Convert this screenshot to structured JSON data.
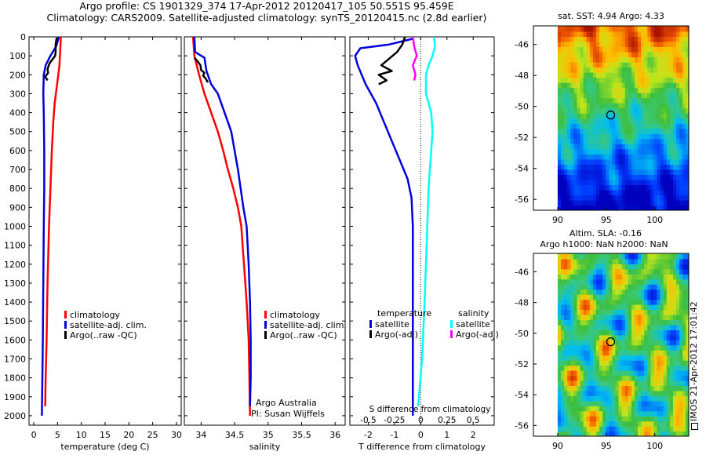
{
  "title": {
    "line1": "Argo profile: CS 1901329_374 17-Apr-2012 20120417_105 50.551S 95.459E",
    "line2": "Climatology: CARS2009. Satellite-adjusted climatology: synTS_20120415.nc (2.8d earlier)"
  },
  "footer": {
    "credit1": "Argo Australia",
    "credit2": "PI: Susan Wijffels",
    "timestamp": "IMOS 21-Apr-2012 17:01:42"
  },
  "colors": {
    "red": "#ff0000",
    "blue": "#0000dd",
    "black": "#000000",
    "cyan": "#00ffff",
    "magenta": "#ff00ff"
  },
  "chart_data": [
    {
      "id": "temperature",
      "type": "line",
      "xlabel": "temperature (deg C)",
      "ylabel": "",
      "xlim": [
        -1,
        31
      ],
      "ylim": [
        2050,
        0
      ],
      "xticks": [
        0,
        5,
        10,
        15,
        20,
        25,
        30
      ],
      "yticks": [
        0,
        100,
        200,
        300,
        400,
        500,
        600,
        700,
        800,
        900,
        1000,
        1100,
        1200,
        1300,
        1400,
        1500,
        1600,
        1700,
        1800,
        1900,
        2000
      ],
      "legend": [
        "climatology",
        "satellite-adj. clim.",
        "Argo(..raw -QC)"
      ],
      "series": [
        {
          "name": "climatology",
          "color": "red",
          "points": [
            [
              5.7,
              0
            ],
            [
              5.6,
              50
            ],
            [
              5.4,
              150
            ],
            [
              4.9,
              250
            ],
            [
              4.4,
              350
            ],
            [
              4.1,
              450
            ],
            [
              3.8,
              600
            ],
            [
              3.5,
              800
            ],
            [
              3.2,
              1000
            ],
            [
              2.9,
              1300
            ],
            [
              2.7,
              1600
            ],
            [
              2.5,
              1800
            ],
            [
              2.4,
              1950
            ]
          ]
        },
        {
          "name": "satellite-adj. clim.",
          "color": "blue",
          "points": [
            [
              5.3,
              0
            ],
            [
              4.7,
              50
            ],
            [
              3.5,
              100
            ],
            [
              2.5,
              150
            ],
            [
              2.1,
              200
            ],
            [
              2.0,
              300
            ],
            [
              2.1,
              400
            ],
            [
              2.2,
              600
            ],
            [
              2.2,
              800
            ],
            [
              2.1,
              1000
            ],
            [
              2.0,
              1300
            ],
            [
              1.9,
              1600
            ],
            [
              1.8,
              1800
            ],
            [
              1.7,
              2000
            ]
          ]
        },
        {
          "name": "Argo(..raw -QC)",
          "color": "black",
          "points": [
            [
              4.8,
              5
            ],
            [
              4.6,
              40
            ],
            [
              4.6,
              80
            ],
            [
              4.5,
              100
            ],
            [
              3.3,
              140
            ],
            [
              2.9,
              170
            ],
            [
              3.0,
              190
            ],
            [
              2.4,
              210
            ],
            [
              2.9,
              230
            ]
          ]
        }
      ]
    },
    {
      "id": "salinity",
      "type": "line",
      "xlabel": "salinity",
      "ylabel": "",
      "xlim": [
        33.75,
        36.15
      ],
      "ylim": [
        2050,
        0
      ],
      "xticks": [
        34,
        34.5,
        35,
        35.5,
        36
      ],
      "xticklabels": [
        "34",
        "34.5",
        "35",
        "35.5",
        "36"
      ],
      "legend": [
        "climatology",
        "satellite-adj. clim.",
        "Argo(..raw -QC)"
      ],
      "series": [
        {
          "name": "climatology",
          "color": "red",
          "points": [
            [
              33.88,
              0
            ],
            [
              33.9,
              100
            ],
            [
              33.97,
              200
            ],
            [
              34.05,
              300
            ],
            [
              34.15,
              400
            ],
            [
              34.25,
              500
            ],
            [
              34.33,
              600
            ],
            [
              34.4,
              700
            ],
            [
              34.48,
              800
            ],
            [
              34.55,
              900
            ],
            [
              34.6,
              1000
            ],
            [
              34.64,
              1200
            ],
            [
              34.68,
              1400
            ],
            [
              34.71,
              1600
            ],
            [
              34.72,
              1800
            ],
            [
              34.73,
              2000
            ]
          ]
        },
        {
          "name": "satellite-adj. clim.",
          "color": "blue",
          "points": [
            [
              33.9,
              0
            ],
            [
              33.91,
              80
            ],
            [
              34.05,
              110
            ],
            [
              34.08,
              180
            ],
            [
              34.15,
              250
            ],
            [
              34.25,
              300
            ],
            [
              34.35,
              400
            ],
            [
              34.45,
              500
            ],
            [
              34.55,
              700
            ],
            [
              34.63,
              900
            ],
            [
              34.68,
              1000
            ],
            [
              34.71,
              1200
            ],
            [
              34.73,
              1400
            ],
            [
              34.74,
              1600
            ],
            [
              34.74,
              1800
            ],
            [
              34.73,
              1950
            ]
          ]
        },
        {
          "name": "Argo(..raw -QC)",
          "color": "black",
          "points": [
            [
              33.9,
              110
            ],
            [
              33.95,
              130
            ],
            [
              33.99,
              150
            ],
            [
              34.0,
              175
            ],
            [
              34.05,
              190
            ],
            [
              34.03,
              205
            ],
            [
              34.07,
              220
            ],
            [
              34.1,
              240
            ]
          ]
        }
      ]
    },
    {
      "id": "differences",
      "type": "line",
      "xlabel": "T difference from climatology",
      "x2label": "S difference from climatology",
      "xlim": [
        -2.7,
        2.8
      ],
      "ylim": [
        2050,
        0
      ],
      "xticks": [
        -2,
        -1,
        0,
        1,
        2
      ],
      "x2ticks": [
        -0.5,
        -0.25,
        0,
        0.25,
        0.5
      ],
      "x2ticklabels": [
        "-0.5",
        "-0.25",
        "0",
        "0.25",
        "0.5"
      ],
      "legend_headers": [
        "temperature",
        "salinity"
      ],
      "legend": [
        "satellite",
        "Argo(-adj)",
        "satellite",
        "Argo(-adj)"
      ],
      "series": [
        {
          "name": "temperature satellite",
          "color": "blue",
          "points": [
            [
              -0.3,
              10
            ],
            [
              -1.2,
              40
            ],
            [
              -2.3,
              60
            ],
            [
              -2.5,
              100
            ],
            [
              -2.4,
              150
            ],
            [
              -2.1,
              250
            ],
            [
              -1.7,
              350
            ],
            [
              -1.4,
              450
            ],
            [
              -1.1,
              550
            ],
            [
              -0.8,
              650
            ],
            [
              -0.5,
              750
            ],
            [
              -0.35,
              850
            ],
            [
              -0.3,
              1000
            ],
            [
              -0.3,
              1500
            ],
            [
              -0.3,
              2000
            ]
          ]
        },
        {
          "name": "temperature Argo(-adj)",
          "color": "black",
          "points": [
            [
              -0.6,
              0
            ],
            [
              -0.7,
              40
            ],
            [
              -0.9,
              80
            ],
            [
              -1.5,
              150
            ],
            [
              -1.1,
              180
            ],
            [
              -1.6,
              200
            ],
            [
              -1.3,
              230
            ],
            [
              -1.6,
              250
            ]
          ]
        },
        {
          "name": "salinity satellite",
          "color": "cyan",
          "points": [
            [
              0.5,
              0
            ],
            [
              0.55,
              50
            ],
            [
              0.45,
              100
            ],
            [
              0.3,
              150
            ],
            [
              0.2,
              200
            ],
            [
              0.2,
              300
            ],
            [
              0.3,
              350
            ],
            [
              0.4,
              400
            ],
            [
              0.45,
              500
            ],
            [
              0.4,
              600
            ],
            [
              0.35,
              700
            ],
            [
              0.3,
              800
            ],
            [
              0.25,
              1000
            ],
            [
              0.15,
              1400
            ],
            [
              0.05,
              1700
            ],
            [
              -0.1,
              1950
            ]
          ]
        },
        {
          "name": "salinity Argo(-adj)",
          "color": "magenta",
          "points": [
            [
              -0.3,
              0
            ],
            [
              -0.25,
              50
            ],
            [
              -0.15,
              100
            ],
            [
              -0.3,
              150
            ],
            [
              -0.2,
              200
            ],
            [
              -0.25,
              230
            ]
          ]
        }
      ]
    },
    {
      "id": "sst-map",
      "type": "heatmap",
      "title": "sat. SST: 4.94 Argo: 4.33",
      "xlim": [
        87.5,
        103.5
      ],
      "ylim": [
        -56.7,
        -44.8
      ],
      "xticks": [
        90,
        95,
        100
      ],
      "yticks": [
        -46,
        -48,
        -50,
        -52,
        -54,
        -56
      ],
      "marker": {
        "lon": 95.459,
        "lat": -50.551
      },
      "data_extent_lon": [
        90,
        103.5
      ]
    },
    {
      "id": "sla-map",
      "type": "heatmap",
      "title": "Altim. SLA: -0.16",
      "subtitle": "Argo h1000: NaN h2000: NaN",
      "xlim": [
        87.5,
        103.5
      ],
      "ylim": [
        -56.7,
        -44.8
      ],
      "xticks": [
        90,
        95,
        100
      ],
      "yticks": [
        -46,
        -48,
        -50,
        -52,
        -54,
        -56
      ],
      "marker": {
        "lon": 95.459,
        "lat": -50.551
      },
      "data_extent_lon": [
        90,
        103.5
      ]
    }
  ]
}
